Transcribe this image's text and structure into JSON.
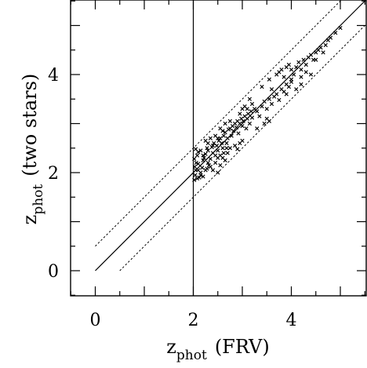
{
  "chart_data": {
    "type": "scatter",
    "title": "",
    "xlabel": {
      "main": "z",
      "sub": "phot",
      "suffix": "(FRV)"
    },
    "ylabel": {
      "main": "z",
      "sub": "phot",
      "suffix": "(two stars)"
    },
    "xlim": [
      -0.5,
      5.5
    ],
    "ylim": [
      -0.5,
      5.5
    ],
    "x_ticks": [
      0,
      2,
      4
    ],
    "y_ticks": [
      0,
      2,
      4
    ],
    "grid": false,
    "reference_lines": {
      "one_to_one": {
        "style": "solid",
        "from": [
          0,
          0
        ],
        "to": [
          5.5,
          5.5
        ]
      },
      "upper_offset": {
        "style": "dotted",
        "offset": 0.5
      },
      "lower_offset": {
        "style": "dotted",
        "offset": -0.5
      },
      "vertical_cut": {
        "style": "solid",
        "x": 2.0
      }
    },
    "marker": "x",
    "series": [
      {
        "points": [
          [
            2.02,
            1.85
          ],
          [
            2.04,
            1.95
          ],
          [
            2.05,
            2.05
          ],
          [
            2.03,
            2.12
          ],
          [
            2.06,
            2.2
          ],
          [
            2.02,
            2.28
          ],
          [
            2.08,
            2.35
          ],
          [
            2.1,
            2.42
          ],
          [
            2.05,
            2.48
          ],
          [
            2.12,
            1.9
          ],
          [
            2.15,
            2.0
          ],
          [
            2.18,
            2.1
          ],
          [
            2.1,
            2.18
          ],
          [
            2.2,
            2.25
          ],
          [
            2.22,
            2.3
          ],
          [
            2.25,
            2.38
          ],
          [
            2.15,
            2.45
          ],
          [
            2.28,
            2.5
          ],
          [
            2.3,
            2.2
          ],
          [
            2.32,
            2.15
          ],
          [
            2.35,
            2.28
          ],
          [
            2.25,
            2.05
          ],
          [
            2.4,
            2.4
          ],
          [
            2.38,
            2.52
          ],
          [
            2.42,
            2.6
          ],
          [
            2.45,
            2.35
          ],
          [
            2.5,
            2.45
          ],
          [
            2.48,
            2.55
          ],
          [
            2.52,
            2.65
          ],
          [
            2.55,
            2.7
          ],
          [
            2.6,
            2.5
          ],
          [
            2.58,
            2.6
          ],
          [
            2.62,
            2.75
          ],
          [
            2.65,
            2.82
          ],
          [
            2.68,
            2.6
          ],
          [
            2.7,
            2.7
          ],
          [
            2.72,
            2.88
          ],
          [
            2.75,
            2.9
          ],
          [
            2.78,
            2.75
          ],
          [
            2.8,
            2.95
          ],
          [
            2.82,
            2.85
          ],
          [
            2.85,
            3.0
          ],
          [
            2.88,
            2.92
          ],
          [
            2.9,
            3.05
          ],
          [
            2.92,
            2.8
          ],
          [
            2.95,
            3.0
          ],
          [
            2.98,
            3.1
          ],
          [
            3.0,
            2.95
          ],
          [
            3.02,
            3.05
          ],
          [
            3.05,
            3.15
          ],
          [
            3.08,
            2.9
          ],
          [
            3.1,
            3.1
          ],
          [
            3.12,
            3.2
          ],
          [
            3.15,
            3.0
          ],
          [
            3.18,
            3.25
          ],
          [
            3.2,
            3.12
          ],
          [
            2.5,
            2.0
          ],
          [
            2.55,
            2.15
          ],
          [
            2.4,
            2.05
          ],
          [
            2.65,
            2.25
          ],
          [
            2.7,
            2.4
          ],
          [
            2.6,
            2.3
          ],
          [
            2.85,
            2.55
          ],
          [
            2.9,
            2.48
          ],
          [
            2.75,
            2.5
          ],
          [
            3.0,
            2.65
          ],
          [
            2.95,
            2.6
          ],
          [
            2.3,
            2.6
          ],
          [
            2.35,
            2.7
          ],
          [
            2.25,
            2.65
          ],
          [
            2.45,
            2.75
          ],
          [
            2.55,
            2.9
          ],
          [
            2.65,
            3.0
          ],
          [
            2.75,
            3.05
          ],
          [
            3.25,
            3.3
          ],
          [
            3.3,
            3.25
          ],
          [
            3.35,
            3.15
          ],
          [
            3.4,
            3.35
          ],
          [
            3.45,
            3.45
          ],
          [
            3.5,
            3.3
          ],
          [
            3.55,
            3.5
          ],
          [
            3.6,
            3.4
          ],
          [
            3.65,
            3.55
          ],
          [
            3.7,
            3.6
          ],
          [
            3.75,
            3.48
          ],
          [
            3.8,
            3.7
          ],
          [
            3.85,
            3.65
          ],
          [
            3.9,
            3.8
          ],
          [
            3.95,
            3.75
          ],
          [
            4.0,
            3.9
          ],
          [
            3.45,
            3.0
          ],
          [
            3.5,
            3.1
          ],
          [
            3.55,
            3.05
          ],
          [
            3.3,
            2.9
          ],
          [
            3.4,
            3.75
          ],
          [
            3.55,
            3.9
          ],
          [
            3.6,
            3.7
          ],
          [
            3.7,
            4.0
          ],
          [
            3.75,
            4.05
          ],
          [
            3.8,
            4.1
          ],
          [
            3.85,
            3.95
          ],
          [
            3.9,
            4.15
          ],
          [
            3.95,
            4.2
          ],
          [
            4.0,
            4.1
          ],
          [
            4.05,
            4.0
          ],
          [
            4.1,
            4.15
          ],
          [
            4.15,
            4.25
          ],
          [
            4.2,
            4.1
          ],
          [
            4.25,
            4.3
          ],
          [
            4.3,
            4.2
          ],
          [
            4.35,
            4.35
          ],
          [
            4.4,
            4.4
          ],
          [
            4.45,
            4.3
          ],
          [
            4.5,
            4.45
          ],
          [
            4.55,
            4.5
          ],
          [
            4.6,
            4.55
          ],
          [
            4.65,
            4.45
          ],
          [
            4.7,
            4.6
          ],
          [
            4.75,
            4.7
          ],
          [
            4.8,
            4.75
          ],
          [
            4.9,
            4.85
          ],
          [
            5.0,
            4.95
          ],
          [
            4.2,
            3.95
          ],
          [
            4.3,
            4.05
          ],
          [
            4.4,
            4.0
          ],
          [
            4.5,
            4.3
          ],
          [
            3.9,
            3.6
          ],
          [
            4.0,
            3.85
          ],
          [
            4.1,
            3.7
          ],
          [
            4.2,
            3.8
          ],
          [
            3.2,
            3.4
          ],
          [
            3.15,
            3.5
          ],
          [
            3.1,
            3.3
          ],
          [
            3.05,
            3.35
          ],
          [
            3.0,
            3.3
          ],
          [
            2.95,
            3.2
          ],
          [
            2.6,
            2.85
          ],
          [
            2.5,
            2.7
          ],
          [
            2.4,
            2.55
          ],
          [
            2.3,
            2.45
          ],
          [
            2.2,
            2.35
          ],
          [
            2.1,
            2.05
          ],
          [
            2.15,
            1.95
          ],
          [
            2.2,
            1.92
          ],
          [
            2.08,
            1.88
          ],
          [
            2.28,
            2.08
          ],
          [
            2.35,
            2.12
          ],
          [
            2.45,
            2.2
          ],
          [
            2.5,
            2.3
          ],
          [
            2.55,
            2.35
          ],
          [
            2.62,
            2.4
          ],
          [
            2.68,
            2.5
          ]
        ]
      }
    ]
  }
}
